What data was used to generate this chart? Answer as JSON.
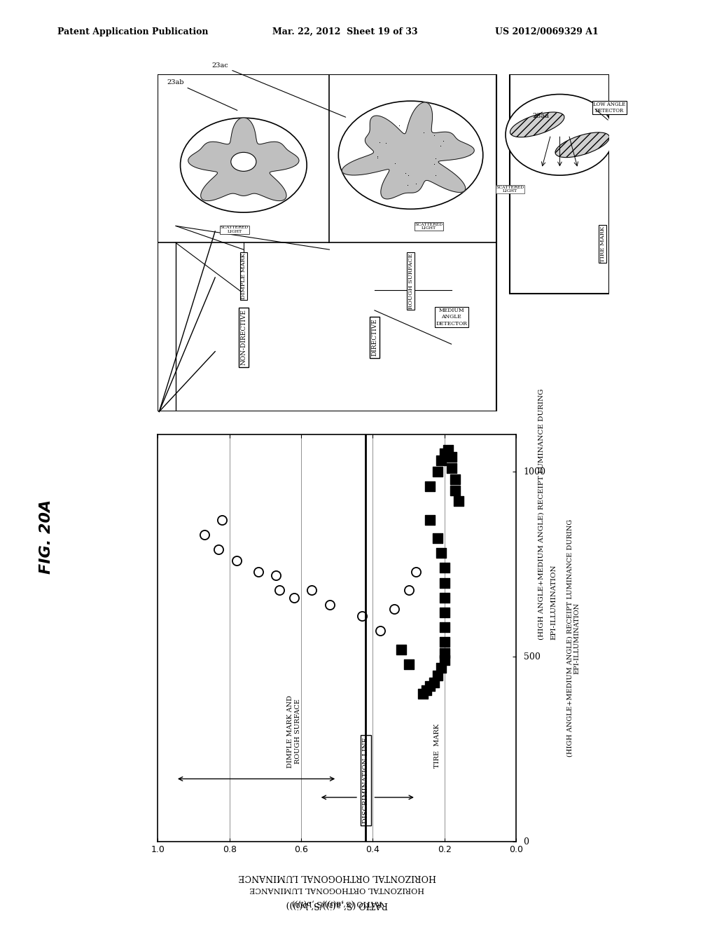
{
  "header_left": "Patent Application Publication",
  "header_mid": "Mar. 22, 2012  Sheet 19 of 33",
  "header_right": "US 2012/0069329 A1",
  "fig_label": "FIG. 20A",
  "xlabel_line1": "HORIZONTAL ORTHOGONAL LUMINANCE",
  "xlabel_line2": "RATIO (S’,a(i))/S’,b(i)))",
  "ylabel_line1": "(HIGH ANGLE+MEDIUM ANGLE) RECEIPT LUMINANCE DURING",
  "ylabel_line2": "EPI-ILLUMINATION",
  "xmin": 0.0,
  "xmax": 1.0,
  "xticks": [
    0.0,
    0.2,
    0.4,
    0.6,
    0.8,
    1.0
  ],
  "ymin": 0,
  "ymax": 1100,
  "yticks": [
    0,
    500,
    1000
  ],
  "circle_pts_x": [
    0.82,
    0.87,
    0.83,
    0.78,
    0.72,
    0.67,
    0.66,
    0.62,
    0.57,
    0.52,
    0.43,
    0.38,
    0.34,
    0.3,
    0.28
  ],
  "circle_pts_y": [
    870,
    830,
    790,
    760,
    730,
    720,
    680,
    660,
    680,
    640,
    610,
    570,
    630,
    680,
    730
  ],
  "square_pts_x": [
    0.24,
    0.22,
    0.21,
    0.2,
    0.2,
    0.2,
    0.2,
    0.2,
    0.2,
    0.2,
    0.2,
    0.21,
    0.22,
    0.23,
    0.24,
    0.25,
    0.26,
    0.24,
    0.22,
    0.21,
    0.2,
    0.19,
    0.18,
    0.18,
    0.17,
    0.17,
    0.16,
    0.32,
    0.3
  ],
  "square_pts_y": [
    870,
    820,
    780,
    740,
    700,
    660,
    620,
    580,
    540,
    510,
    490,
    470,
    450,
    430,
    420,
    410,
    400,
    960,
    1000,
    1030,
    1050,
    1060,
    1040,
    1010,
    980,
    950,
    920,
    520,
    480
  ],
  "vline_x": 0.42,
  "background_color": "#ffffff",
  "label_23ab": "23ab",
  "label_23ac": "23ac",
  "label_23aa": "23aa"
}
